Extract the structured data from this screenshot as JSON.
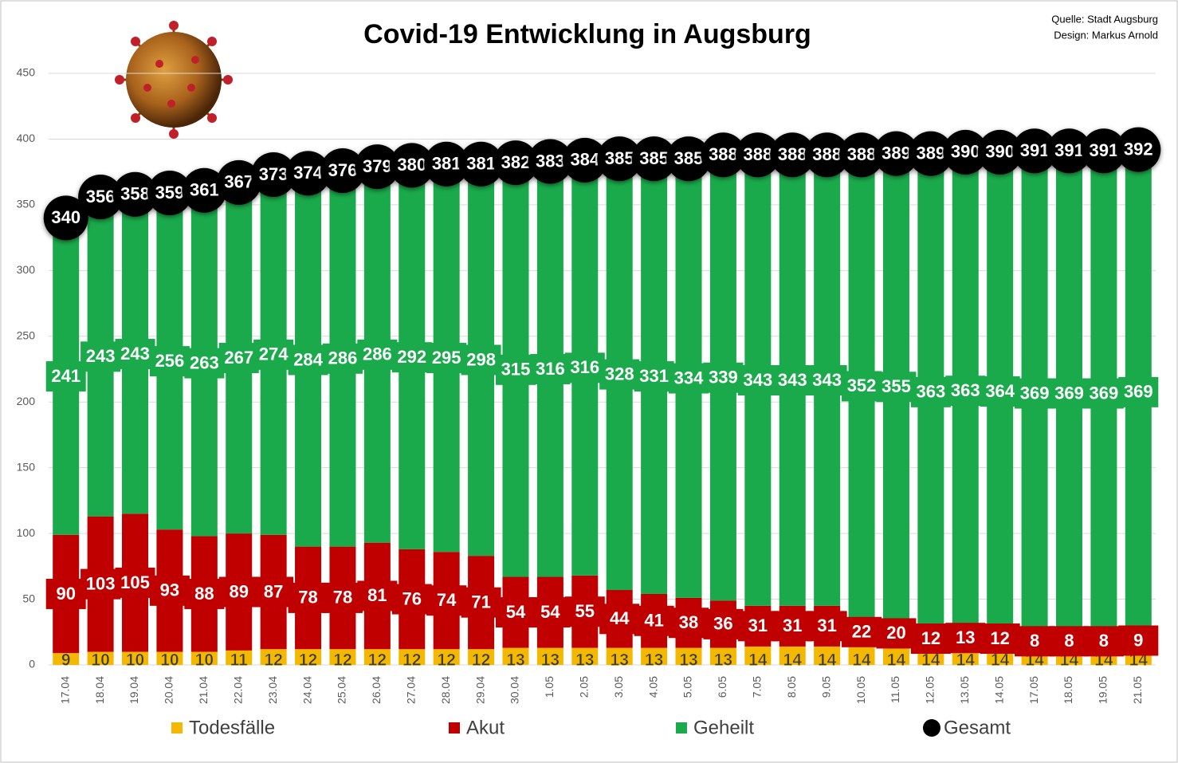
{
  "chart_data": {
    "type": "bar",
    "stacked": true,
    "title": "Covid-19 Entwicklung in Augsburg",
    "source": [
      "Quelle: Stadt Augsburg",
      "Design: Markus Arnold"
    ],
    "categories": [
      "17.04",
      "18.04",
      "19.04",
      "20.04",
      "21.04",
      "22.04",
      "23.04",
      "24.04",
      "25.04",
      "26.04",
      "27.04",
      "28.04",
      "29.04",
      "30.04",
      "1.05",
      "2.05",
      "3.05",
      "4.05",
      "5.05",
      "6.05",
      "7.05",
      "8.05",
      "9.05",
      "10.05",
      "11.05",
      "12.05",
      "13.05",
      "14.05",
      "17.05",
      "18.05",
      "19.05",
      "21.05"
    ],
    "series": [
      {
        "name": "Todesfälle",
        "color": "#f5b800",
        "values": [
          9,
          10,
          10,
          10,
          10,
          11,
          12,
          12,
          12,
          12,
          12,
          12,
          12,
          13,
          13,
          13,
          13,
          13,
          13,
          13,
          14,
          14,
          14,
          14,
          14,
          14,
          14,
          14,
          14,
          14,
          14,
          14
        ]
      },
      {
        "name": "Akut",
        "color": "#c00000",
        "values": [
          90,
          103,
          105,
          93,
          88,
          89,
          87,
          78,
          78,
          81,
          76,
          74,
          71,
          54,
          54,
          55,
          44,
          41,
          38,
          36,
          31,
          31,
          31,
          22,
          20,
          12,
          13,
          12,
          8,
          8,
          8,
          9
        ]
      },
      {
        "name": "Geheilt",
        "color": "#1aaa4b",
        "values": [
          241,
          243,
          243,
          256,
          263,
          267,
          274,
          284,
          286,
          286,
          292,
          295,
          298,
          315,
          316,
          316,
          328,
          331,
          334,
          339,
          343,
          343,
          343,
          352,
          355,
          363,
          363,
          364,
          369,
          369,
          369,
          369
        ]
      },
      {
        "name": "Gesamt",
        "color": "#000000",
        "type": "marker",
        "values": [
          340,
          356,
          358,
          359,
          361,
          367,
          373,
          374,
          376,
          379,
          380,
          381,
          381,
          382,
          383,
          384,
          385,
          385,
          385,
          388,
          388,
          388,
          388,
          388,
          389,
          389,
          390,
          390,
          391,
          391,
          391,
          392
        ]
      }
    ],
    "ylim": [
      0,
      450
    ],
    "yticks": [
      0,
      50,
      100,
      150,
      200,
      250,
      300,
      350,
      400,
      450
    ],
    "grid": true
  }
}
